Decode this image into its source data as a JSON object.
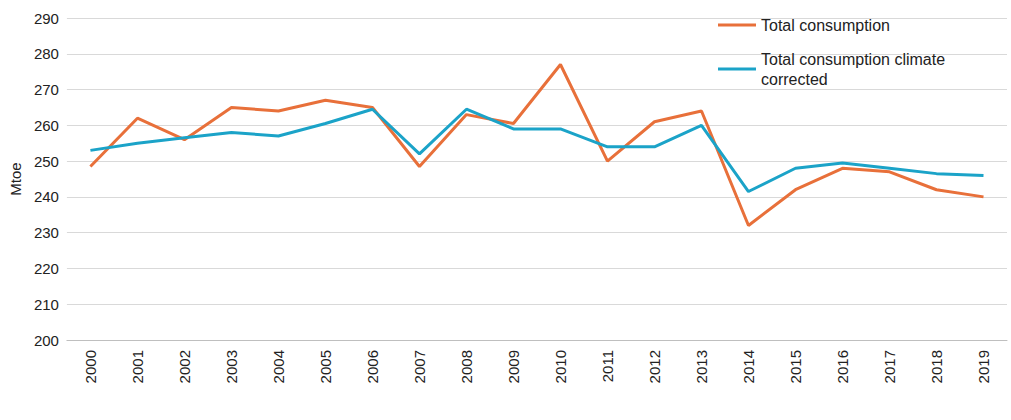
{
  "chart_data": {
    "type": "line",
    "y_label": "Mtoe",
    "categories": [
      "2000",
      "2001",
      "2002",
      "2003",
      "2004",
      "2005",
      "2006",
      "2007",
      "2008",
      "2009",
      "2010",
      "2011",
      "2012",
      "2013",
      "2014",
      "2015",
      "2016",
      "2017",
      "2018",
      "2019"
    ],
    "series": [
      {
        "name": "Total consumption",
        "color": "#e8703a",
        "values": [
          248.5,
          262,
          256,
          265,
          264,
          267,
          265,
          248.5,
          263,
          260.5,
          277,
          250,
          261,
          264,
          232,
          242,
          248,
          247,
          242,
          240
        ]
      },
      {
        "name": "Total consumption climate corrected",
        "color": "#1ba3c8",
        "values": [
          253,
          255,
          256.5,
          258,
          257,
          260.5,
          264.5,
          252,
          264.5,
          259,
          259,
          254,
          254,
          260,
          241.5,
          248,
          249.5,
          248,
          246.5,
          246
        ]
      }
    ],
    "ylim": [
      200,
      290
    ],
    "yticks": [
      200,
      210,
      220,
      230,
      240,
      250,
      260,
      270,
      280,
      290
    ],
    "grid": true,
    "legend": "top-right"
  }
}
